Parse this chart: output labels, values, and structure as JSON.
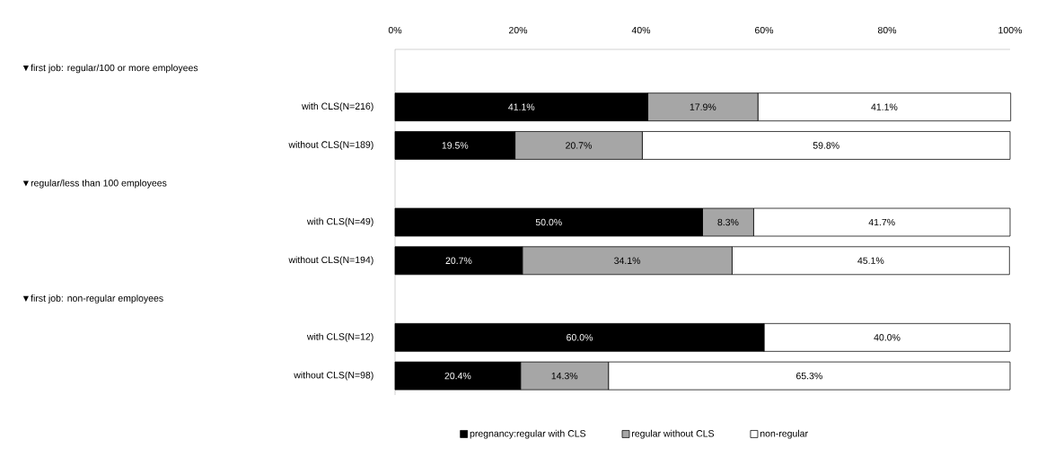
{
  "chart_data": {
    "type": "bar",
    "orientation": "horizontal",
    "stacked": true,
    "categories": [
      null,
      "with CLS(N=216)",
      "without CLS(N=189)",
      null,
      "with CLS(N=49)",
      "without CLS(N=194)",
      null,
      "with CLS(N=12)",
      "without CLS(N=98)"
    ],
    "annotations": [
      "▼first job: regular/100 or more employees",
      "▼regular/less than 100 employees",
      "▼first job: non-regular employees"
    ],
    "series": [
      {
        "name": "pregnancy:regular with CLS",
        "color": "#000000",
        "values": [
          null,
          41.1,
          19.5,
          null,
          50.0,
          20.7,
          null,
          60.0,
          20.4
        ],
        "value_labels": [
          null,
          "41.1%",
          "19.5%",
          null,
          "50.0%",
          "20.7%",
          null,
          "60.0%",
          "20.4%"
        ]
      },
      {
        "name": "regular without CLS",
        "color": "#a6a6a6",
        "values": [
          null,
          17.9,
          20.7,
          null,
          8.3,
          34.1,
          null,
          null,
          14.3
        ],
        "value_labels": [
          null,
          "17.9%",
          "20.7%",
          null,
          "8.3%",
          "34.1%",
          null,
          null,
          "14.3%"
        ]
      },
      {
        "name": "non-regular",
        "color": "#ffffff",
        "values": [
          null,
          41.1,
          59.8,
          null,
          41.7,
          45.1,
          null,
          40.0,
          65.3
        ],
        "value_labels": [
          null,
          "41.1%",
          "59.8%",
          null,
          "41.7%",
          "45.1%",
          null,
          "40.0%",
          "65.3%"
        ]
      }
    ],
    "xlim": [
      0,
      100
    ],
    "xticks": [
      {
        "value": 0,
        "label": "0%"
      },
      {
        "value": 20,
        "label": "20%"
      },
      {
        "value": 40,
        "label": "40%"
      },
      {
        "value": 60,
        "label": "60%"
      },
      {
        "value": 80,
        "label": "80%"
      },
      {
        "value": 100,
        "label": "100%"
      }
    ],
    "legend": "bottom"
  }
}
